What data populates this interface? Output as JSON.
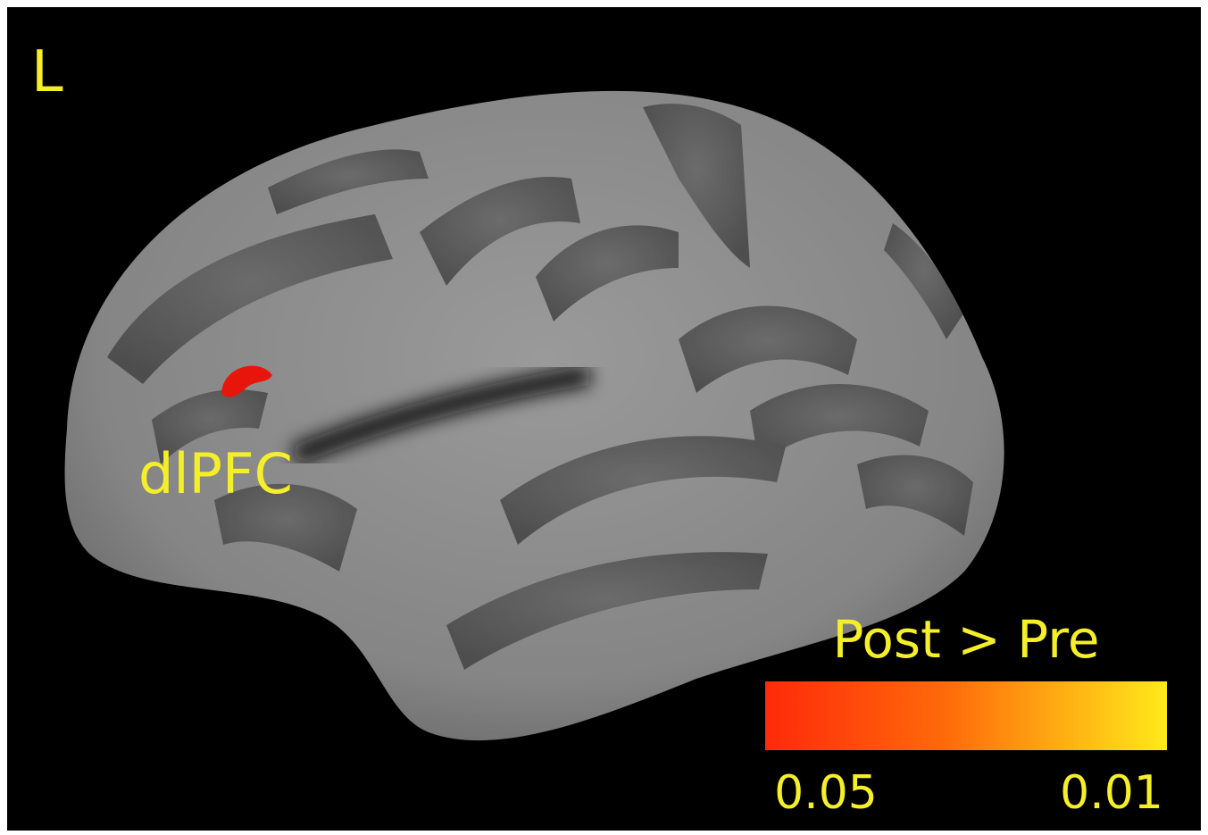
{
  "hemisphere_label": "L",
  "region_label": "dlPFC",
  "colorbar": {
    "title": "Post > Pre",
    "min_label": "0.05",
    "max_label": "0.01"
  }
}
